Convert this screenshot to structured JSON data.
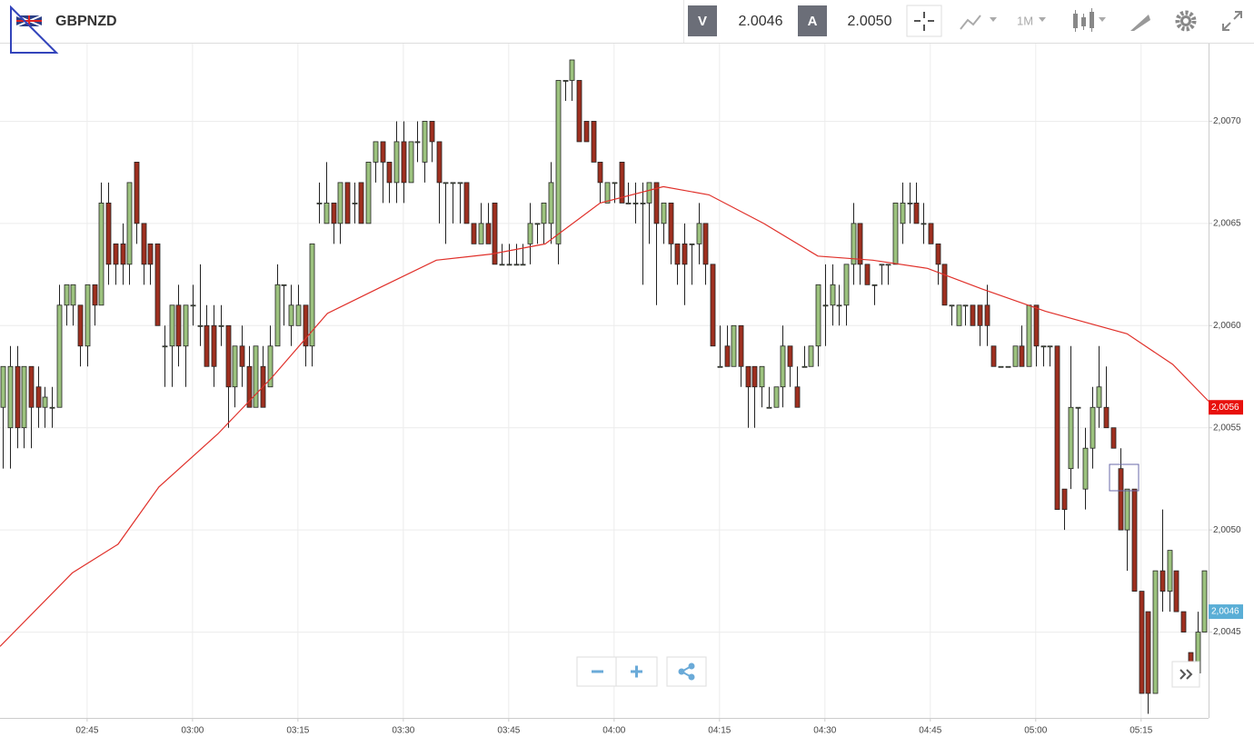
{
  "toolbar": {
    "symbol": "GBPNZD",
    "bid_label": "V",
    "bid": "2.0046",
    "ask_label": "A",
    "ask": "2.0050",
    "timeframe": "1M"
  },
  "chart_data": {
    "type": "candlestick",
    "up_color": "#9cc27e",
    "down_color": "#9e2f1f",
    "xlim": [
      152.6,
      324.6
    ],
    "xticks": [
      {
        "value": 165,
        "label": "02:45"
      },
      {
        "value": 180,
        "label": "03:00"
      },
      {
        "value": 195,
        "label": "03:15"
      },
      {
        "value": 210,
        "label": "03:30"
      },
      {
        "value": 225,
        "label": "03:45"
      },
      {
        "value": 240,
        "label": "04:00"
      },
      {
        "value": 255,
        "label": "04:15"
      },
      {
        "value": 270,
        "label": "04:30"
      },
      {
        "value": 285,
        "label": "04:45"
      },
      {
        "value": 300,
        "label": "05:00"
      },
      {
        "value": 315,
        "label": "05:15"
      }
    ],
    "ylim": [
      2.00408,
      2.00738
    ],
    "yticks": [
      {
        "value": 2.0045,
        "label": "2,0045"
      },
      {
        "value": 2.005,
        "label": "2,0050"
      },
      {
        "value": 2.0055,
        "label": "2,0055"
      },
      {
        "value": 2.006,
        "label": "2,0060"
      },
      {
        "value": 2.0065,
        "label": "2,0065"
      },
      {
        "value": 2.007,
        "label": "2,0070"
      }
    ],
    "grid": true,
    "x": [
      153,
      154,
      155,
      156,
      157,
      158,
      159,
      160,
      161,
      162,
      163,
      164,
      165,
      166,
      167,
      168,
      169,
      170,
      171,
      172,
      173,
      174,
      175,
      176,
      177,
      178,
      179,
      180,
      181,
      182,
      183,
      184,
      185,
      186,
      187,
      188,
      189,
      190,
      191,
      192,
      193,
      194,
      195,
      196,
      197,
      198,
      199,
      200,
      201,
      202,
      203,
      204,
      205,
      206,
      207,
      208,
      209,
      210,
      211,
      212,
      213,
      214,
      215,
      216,
      217,
      218,
      219,
      220,
      221,
      222,
      223,
      224,
      225,
      226,
      227,
      228,
      229,
      230,
      231,
      232,
      233,
      234,
      235,
      236,
      237,
      238,
      239,
      240,
      241,
      242,
      243,
      244,
      245,
      246,
      247,
      248,
      249,
      250,
      251,
      252,
      253,
      254,
      255,
      256,
      257,
      258,
      259,
      260,
      261,
      262,
      263,
      264,
      265,
      266,
      267,
      268,
      269,
      270,
      271,
      272,
      273,
      274,
      275,
      276,
      277,
      278,
      279,
      280,
      281,
      282,
      283,
      284,
      285,
      286,
      287,
      288,
      289,
      290,
      291,
      292,
      293,
      294,
      295,
      296,
      297,
      298,
      299,
      300,
      301,
      302,
      303,
      304,
      305,
      306,
      307,
      308,
      309,
      310,
      311,
      312,
      313,
      314,
      315,
      316,
      317,
      318,
      319,
      320,
      321,
      322,
      323,
      324
    ],
    "open": [
      2.0056,
      2.0055,
      2.0058,
      2.0055,
      2.0058,
      2.0057,
      2.0056,
      2.0056,
      2.0056,
      2.0061,
      2.0061,
      2.0061,
      2.0059,
      2.0062,
      2.0061,
      2.0066,
      2.0064,
      2.0064,
      2.0063,
      2.0068,
      2.0065,
      2.0064,
      2.0064,
      2.0059,
      2.0059,
      2.0061,
      2.0059,
      2.0061,
      2.006,
      2.006,
      2.006,
      2.006,
      2.006,
      2.0057,
      2.0059,
      2.0058,
      2.0056,
      2.0058,
      2.0057,
      2.0059,
      2.0062,
      2.006,
      2.006,
      2.0061,
      2.0059,
      2.0066,
      2.0065,
      2.0066,
      2.0065,
      2.0067,
      2.0066,
      2.0067,
      2.0065,
      2.0068,
      2.0069,
      2.0068,
      2.0067,
      2.0069,
      2.0067,
      2.0069,
      2.0068,
      2.007,
      2.0069,
      2.0067,
      2.0067,
      2.0067,
      2.0067,
      2.0065,
      2.0064,
      2.0065,
      2.0066,
      2.0063,
      2.0063,
      2.0063,
      2.0063,
      2.0064,
      2.0065,
      2.0065,
      2.0065,
      2.0064,
      2.0072,
      2.0072,
      2.0072,
      2.007,
      2.007,
      2.0068,
      2.0066,
      2.0067,
      2.0068,
      2.0066,
      2.0066,
      2.0066,
      2.0066,
      2.0067,
      2.0065,
      2.0066,
      2.0064,
      2.0064,
      2.0064,
      2.0064,
      2.0065,
      2.0063,
      2.0058,
      2.0059,
      2.0058,
      2.006,
      2.0058,
      2.0058,
      2.0057,
      2.0056,
      2.0056,
      2.0057,
      2.0059,
      2.0057,
      2.0058,
      2.0058,
      2.0059,
      2.0061,
      2.0061,
      2.0061,
      2.0061,
      2.0063,
      2.0065,
      2.0063,
      2.0062,
      2.0063,
      2.0063,
      2.0063,
      2.0065,
      2.0066,
      2.0066,
      2.0065,
      2.0065,
      2.0064,
      2.0063,
      2.0061,
      2.006,
      2.0061,
      2.0061,
      2.0061,
      2.0061,
      2.0059,
      2.0058,
      2.0058,
      2.0058,
      2.0059,
      2.0058,
      2.0061,
      2.0059,
      2.0059,
      2.0059,
      2.0052,
      2.0053,
      2.0056,
      2.0052,
      2.0054,
      2.0056,
      2.0056,
      2.0055,
      2.0053,
      2.005,
      2.0052,
      2.0047,
      2.0046,
      2.0042,
      2.0048,
      2.0047,
      2.0048,
      2.0046,
      2.0044,
      2.0043,
      2.0045
    ],
    "high": [
      2.0058,
      2.0059,
      2.0059,
      2.0058,
      2.0058,
      2.0058,
      2.0057,
      2.0057,
      2.0062,
      2.0062,
      2.0062,
      2.0061,
      2.0062,
      2.0062,
      2.0067,
      2.0067,
      2.0064,
      2.0065,
      2.0067,
      2.0068,
      2.0065,
      2.0064,
      2.0064,
      2.006,
      2.0061,
      2.0062,
      2.0061,
      2.0062,
      2.0063,
      2.0061,
      2.0061,
      2.0061,
      2.006,
      2.0059,
      2.006,
      2.0059,
      2.0059,
      2.0059,
      2.006,
      2.0063,
      2.0062,
      2.0062,
      2.0062,
      2.0061,
      2.0064,
      2.0067,
      2.0068,
      2.0066,
      2.0067,
      2.0067,
      2.0067,
      2.0067,
      2.0068,
      2.0069,
      2.0069,
      2.0068,
      2.007,
      2.007,
      2.0069,
      2.007,
      2.007,
      2.007,
      2.0069,
      2.0067,
      2.0067,
      2.0067,
      2.0067,
      2.0065,
      2.0066,
      2.0066,
      2.0066,
      2.0064,
      2.0064,
      2.0064,
      2.0064,
      2.0066,
      2.0065,
      2.0066,
      2.0068,
      2.0072,
      2.0072,
      2.0073,
      2.0072,
      2.007,
      2.007,
      2.0068,
      2.0067,
      2.0067,
      2.0068,
      2.0067,
      2.0067,
      2.0067,
      2.0067,
      2.0067,
      2.0066,
      2.0066,
      2.0064,
      2.0065,
      2.0064,
      2.0066,
      2.0065,
      2.0063,
      2.006,
      2.006,
      2.006,
      2.006,
      2.0058,
      2.0058,
      2.0058,
      2.0057,
      2.0057,
      2.006,
      2.0059,
      2.0058,
      2.0059,
      2.0059,
      2.0062,
      2.0063,
      2.0063,
      2.0062,
      2.0063,
      2.0066,
      2.0065,
      2.0063,
      2.0062,
      2.0063,
      2.0063,
      2.0066,
      2.0067,
      2.0067,
      2.0067,
      2.0066,
      2.0065,
      2.0064,
      2.0063,
      2.0061,
      2.0061,
      2.0061,
      2.0061,
      2.0061,
      2.0062,
      2.0059,
      2.0058,
      2.0058,
      2.0059,
      2.006,
      2.0061,
      2.0061,
      2.0059,
      2.0059,
      2.0059,
      2.0052,
      2.0059,
      2.0056,
      2.0055,
      2.0057,
      2.0059,
      2.0058,
      2.0055,
      2.0054,
      2.0052,
      2.0052,
      2.0047,
      2.0046,
      2.0048,
      2.0051,
      2.0049,
      2.0048,
      2.0046,
      2.0044,
      2.0046,
      2.0048
    ],
    "low": [
      2.0053,
      2.0053,
      2.0054,
      2.0054,
      2.0054,
      2.0055,
      2.0055,
      2.0055,
      2.0056,
      2.006,
      2.006,
      2.0058,
      2.0058,
      2.006,
      2.0061,
      2.0062,
      2.0062,
      2.0062,
      2.0062,
      2.0064,
      2.0062,
      2.0062,
      2.006,
      2.0057,
      2.0057,
      2.0058,
      2.0057,
      2.006,
      2.0059,
      2.0058,
      2.0057,
      2.0059,
      2.0055,
      2.0056,
      2.0057,
      2.0056,
      2.0056,
      2.0056,
      2.0057,
      2.0059,
      2.006,
      2.0059,
      2.006,
      2.0058,
      2.0058,
      2.0065,
      2.0065,
      2.0064,
      2.0064,
      2.0065,
      2.0065,
      2.0065,
      2.0065,
      2.0067,
      2.0066,
      2.0066,
      2.0066,
      2.0066,
      2.0067,
      2.0068,
      2.0067,
      2.0068,
      2.0065,
      2.0064,
      2.0065,
      2.0065,
      2.0065,
      2.0064,
      2.0064,
      2.0064,
      2.0063,
      2.0063,
      2.0063,
      2.0063,
      2.0063,
      2.0063,
      2.0064,
      2.0064,
      2.0064,
      2.0063,
      2.0071,
      2.0071,
      2.0069,
      2.0069,
      2.0068,
      2.0066,
      2.0066,
      2.0066,
      2.0066,
      2.0066,
      2.0065,
      2.0062,
      2.0064,
      2.0061,
      2.0064,
      2.0063,
      2.0062,
      2.0061,
      2.0062,
      2.0063,
      2.0062,
      2.0059,
      2.0058,
      2.0058,
      2.0058,
      2.0057,
      2.0055,
      2.0055,
      2.0056,
      2.0056,
      2.0056,
      2.0056,
      2.0057,
      2.0056,
      2.0058,
      2.0058,
      2.0058,
      2.0059,
      2.006,
      2.006,
      2.006,
      2.0062,
      2.0062,
      2.0062,
      2.0061,
      2.0062,
      2.0062,
      2.0063,
      2.0064,
      2.0065,
      2.0065,
      2.0064,
      2.0064,
      2.0062,
      2.0061,
      2.006,
      2.006,
      2.006,
      2.006,
      2.0059,
      2.0059,
      2.0058,
      2.0058,
      2.0058,
      2.0058,
      2.0058,
      2.0058,
      2.0058,
      2.0058,
      2.0058,
      2.0051,
      2.005,
      2.0052,
      2.0053,
      2.0051,
      2.0053,
      2.0055,
      2.0055,
      2.0054,
      2.005,
      2.0048,
      2.0047,
      2.0042,
      2.0041,
      2.0042,
      2.0046,
      2.0046,
      2.0046,
      2.0045,
      2.0043,
      2.0043,
      2.0045
    ],
    "close": [
      2.0058,
      2.0058,
      2.0055,
      2.0058,
      2.0056,
      2.0056,
      2.00565,
      2.0056,
      2.0061,
      2.0062,
      2.0062,
      2.0059,
      2.0062,
      2.0061,
      2.0066,
      2.0063,
      2.0063,
      2.0063,
      2.0067,
      2.0065,
      2.0063,
      2.0063,
      2.006,
      2.0059,
      2.0061,
      2.0059,
      2.0061,
      2.0061,
      2.006,
      2.0058,
      2.0058,
      2.006,
      2.0057,
      2.0059,
      2.0058,
      2.0056,
      2.0059,
      2.0056,
      2.0059,
      2.0062,
      2.0062,
      2.0061,
      2.0061,
      2.0059,
      2.0064,
      2.0066,
      2.0066,
      2.0065,
      2.0067,
      2.0065,
      2.0066,
      2.0065,
      2.0068,
      2.0069,
      2.0068,
      2.0067,
      2.0069,
      2.0067,
      2.0069,
      2.0069,
      2.007,
      2.0069,
      2.0067,
      2.0067,
      2.0067,
      2.0067,
      2.0065,
      2.0064,
      2.0065,
      2.0064,
      2.0063,
      2.0063,
      2.0063,
      2.0063,
      2.0063,
      2.0065,
      2.0065,
      2.0066,
      2.0067,
      2.0072,
      2.0072,
      2.0073,
      2.0069,
      2.0069,
      2.0068,
      2.0067,
      2.0067,
      2.0067,
      2.0066,
      2.0066,
      2.0066,
      2.0066,
      2.0067,
      2.0065,
      2.0066,
      2.0064,
      2.0063,
      2.0063,
      2.0064,
      2.0065,
      2.0063,
      2.0059,
      2.0058,
      2.0058,
      2.006,
      2.0058,
      2.0057,
      2.0057,
      2.0058,
      2.0056,
      2.0057,
      2.0059,
      2.0058,
      2.0056,
      2.0058,
      2.0059,
      2.0062,
      2.0061,
      2.0062,
      2.0061,
      2.0063,
      2.0065,
      2.0063,
      2.0062,
      2.0062,
      2.0063,
      2.0063,
      2.0066,
      2.0066,
      2.0066,
      2.0065,
      2.0065,
      2.0064,
      2.0063,
      2.0061,
      2.0061,
      2.0061,
      2.0061,
      2.006,
      2.006,
      2.006,
      2.0058,
      2.0058,
      2.0058,
      2.0059,
      2.0058,
      2.0061,
      2.0059,
      2.0059,
      2.0059,
      2.0051,
      2.0051,
      2.0056,
      2.0056,
      2.0054,
      2.0056,
      2.0057,
      2.0055,
      2.0054,
      2.005,
      2.0052,
      2.0047,
      2.0042,
      2.0042,
      2.0048,
      2.0047,
      2.0049,
      2.0046,
      2.0045,
      2.00435,
      2.0045,
      2.0048
    ],
    "moving_average": {
      "color": "#e0302a",
      "x": [
        152.6,
        162.9,
        169.4,
        175.2,
        183.6,
        191.4,
        199.2,
        206.9,
        214.7,
        222.5,
        230.2,
        238.0,
        247.0,
        253.5,
        261.3,
        269.0,
        276.8,
        284.6,
        292.3,
        301.4,
        313.0,
        319.5,
        324.6
      ],
      "values": [
        2.00443,
        2.00479,
        2.00493,
        2.00521,
        2.00547,
        2.00575,
        2.00606,
        2.00619,
        2.00632,
        2.00635,
        2.0064,
        2.0066,
        2.00668,
        2.00664,
        2.0065,
        2.00634,
        2.00632,
        2.00628,
        2.00618,
        2.00607,
        2.00596,
        2.00581,
        2.00563
      ]
    },
    "price_tags": [
      {
        "value": 2.0056,
        "label": "2,0056",
        "color": "#e8100c"
      },
      {
        "value": 2.0046,
        "label": "2,0046",
        "color": "#5aaed6"
      }
    ]
  }
}
